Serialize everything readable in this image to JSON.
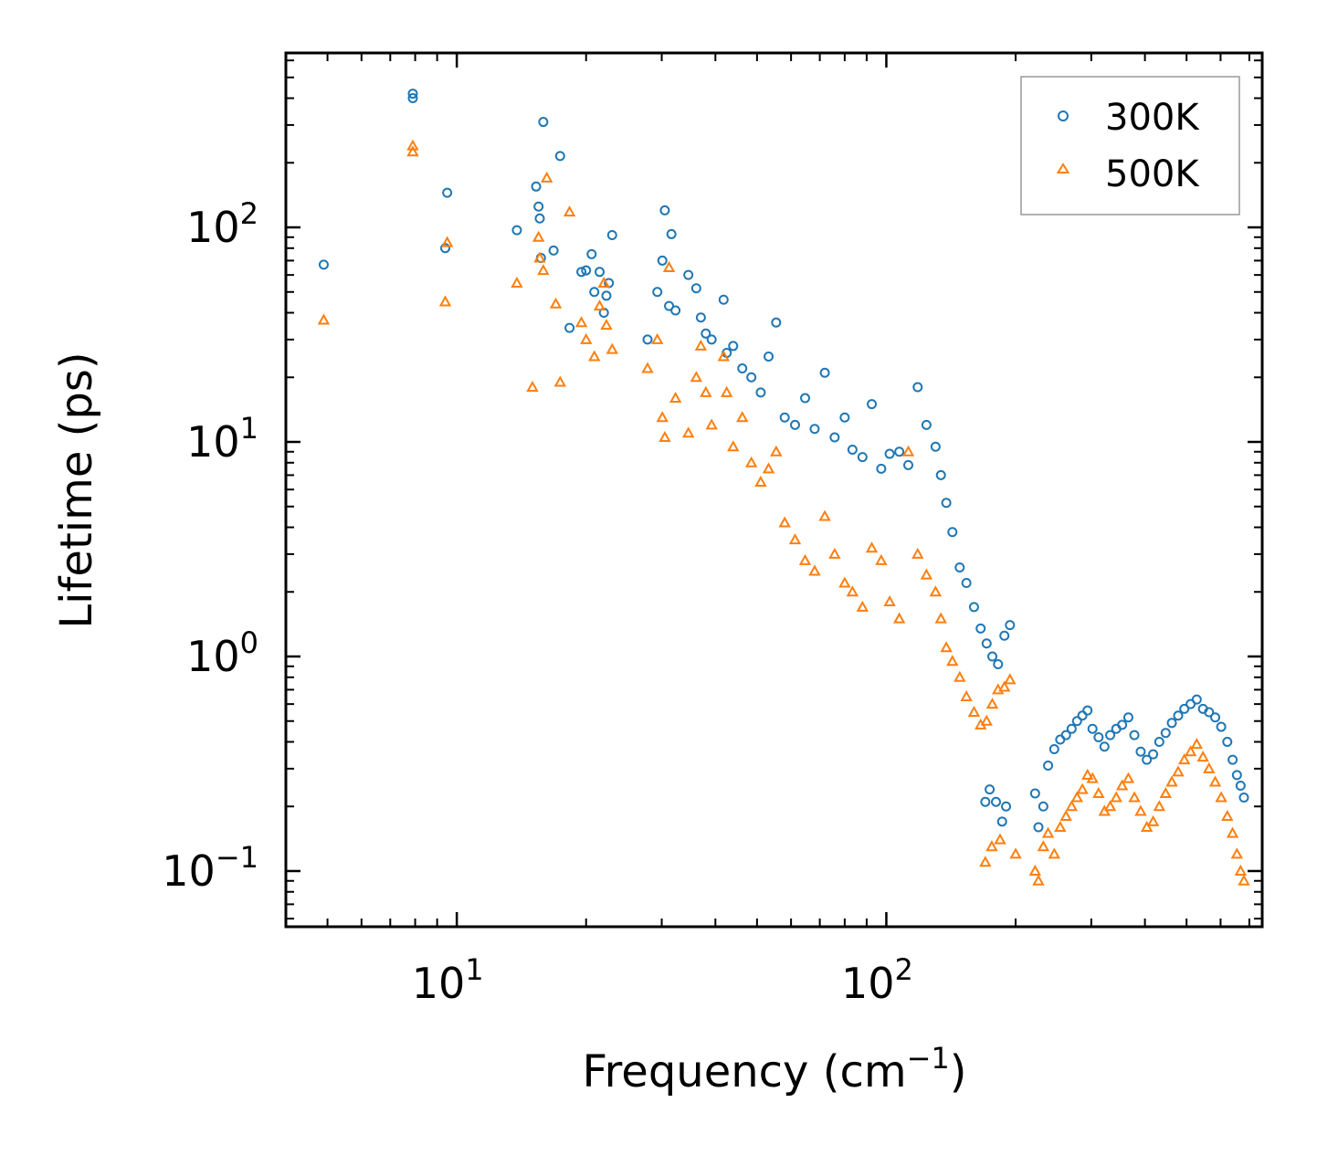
{
  "chart_data": {
    "type": "scatter",
    "xscale": "log",
    "yscale": "log",
    "xlabel": "Frequency (cm",
    "xlabel_sup": "−1",
    "xlabel_tail": ")",
    "ylabel": "Lifetime (ps)",
    "xlim": [
      4,
      750
    ],
    "ylim": [
      0.055,
      650
    ],
    "xticks": [
      {
        "base": "10",
        "exp": "1",
        "value": 10
      },
      {
        "base": "10",
        "exp": "2",
        "value": 100
      }
    ],
    "yticks": [
      {
        "base": "10",
        "exp": "−1",
        "value": 0.1
      },
      {
        "base": "10",
        "exp": "0",
        "value": 1
      },
      {
        "base": "10",
        "exp": "1",
        "value": 10
      },
      {
        "base": "10",
        "exp": "2",
        "value": 100
      }
    ],
    "legend_position": "top-right",
    "series": [
      {
        "name": "300K",
        "color": "#1f77b4",
        "marker": "circle",
        "x": [
          4.9,
          7.9,
          7.9,
          9.5,
          9.4,
          13.8,
          15.3,
          15.5,
          15.6,
          15.7,
          15.9,
          16.8,
          17.4,
          18.3,
          19.5,
          20.0,
          20.6,
          20.9,
          21.5,
          22.0,
          22.3,
          22.6,
          23.0,
          27.8,
          29.3,
          30.1,
          30.5,
          31.2,
          31.6,
          32.3,
          34.6,
          36.1,
          37.0,
          38.0,
          39.2,
          41.8,
          42.5,
          44.0,
          46.2,
          48.5,
          51.0,
          53.2,
          55.4,
          58.0,
          61.3,
          64.7,
          68.1,
          71.9,
          75.8,
          80.0,
          83.4,
          88.0,
          92.5,
          97.3,
          101.8,
          107.2,
          112.5,
          118.3,
          124.0,
          130.2,
          134.0,
          137.9,
          142.5,
          148.2,
          153.6,
          160.0,
          165.8,
          171.2,
          176.5,
          182.0,
          188.3,
          194.0,
          170.0,
          174.0,
          180.0,
          186.0,
          190.0,
          222.0,
          226.0,
          232.0,
          238.0,
          246.0,
          254.0,
          262.0,
          270.0,
          278.0,
          286.0,
          294.0,
          302.0,
          312.0,
          322.0,
          332.0,
          343.0,
          354.0,
          366.0,
          378.0,
          391.0,
          404.0,
          418.0,
          432.0,
          447.0,
          462.0,
          478.0,
          494.0,
          511.0,
          528.0,
          546.0,
          564.0,
          583.0,
          602.0,
          622.0,
          640.0,
          655.0,
          668.0,
          680.0
        ],
        "y": [
          67,
          420,
          400,
          145,
          80,
          97,
          155,
          125,
          110,
          72,
          310,
          78,
          215,
          34,
          62,
          63,
          75,
          50,
          62,
          40,
          48,
          55,
          92,
          30,
          50,
          70,
          120,
          43,
          93,
          41,
          60,
          52,
          38,
          32,
          30,
          46,
          26,
          28,
          22,
          20,
          17,
          25,
          36,
          13,
          12,
          16,
          11.5,
          21,
          10.5,
          13,
          9.2,
          8.5,
          15,
          7.5,
          8.8,
          9.0,
          7.8,
          18,
          12,
          9.5,
          7.0,
          5.2,
          3.8,
          2.6,
          2.2,
          1.7,
          1.35,
          1.15,
          1.0,
          0.92,
          1.25,
          1.4,
          0.21,
          0.24,
          0.21,
          0.17,
          0.2,
          0.23,
          0.16,
          0.2,
          0.31,
          0.37,
          0.41,
          0.43,
          0.46,
          0.5,
          0.53,
          0.56,
          0.46,
          0.42,
          0.38,
          0.43,
          0.46,
          0.48,
          0.52,
          0.43,
          0.36,
          0.33,
          0.35,
          0.4,
          0.44,
          0.49,
          0.53,
          0.57,
          0.6,
          0.63,
          0.57,
          0.55,
          0.52,
          0.47,
          0.4,
          0.33,
          0.28,
          0.25,
          0.22
        ]
      },
      {
        "name": "500K",
        "color": "#ff7f0e",
        "marker": "triangle",
        "x": [
          4.9,
          7.9,
          7.9,
          9.5,
          9.4,
          13.8,
          15.0,
          15.5,
          15.6,
          15.9,
          16.2,
          17.0,
          17.4,
          18.3,
          19.5,
          20.0,
          20.9,
          21.5,
          22.0,
          22.3,
          23.0,
          27.8,
          29.3,
          30.1,
          30.5,
          31.2,
          32.3,
          34.6,
          36.1,
          37.0,
          38.0,
          39.2,
          41.8,
          42.5,
          44.0,
          46.2,
          48.5,
          51.0,
          53.2,
          55.4,
          58.0,
          61.3,
          64.7,
          68.1,
          71.9,
          75.8,
          80.0,
          83.4,
          88.0,
          92.5,
          97.3,
          101.8,
          107.2,
          112.5,
          118.3,
          124.0,
          130.2,
          134.0,
          137.9,
          142.5,
          148.2,
          153.6,
          160.0,
          165.8,
          171.2,
          176.5,
          182.0,
          188.3,
          194.0,
          170.0,
          176.0,
          184.0,
          200.0,
          222.0,
          226.0,
          232.0,
          238.0,
          246.0,
          254.0,
          262.0,
          270.0,
          278.0,
          286.0,
          294.0,
          302.0,
          312.0,
          322.0,
          332.0,
          343.0,
          354.0,
          366.0,
          378.0,
          391.0,
          404.0,
          418.0,
          432.0,
          447.0,
          462.0,
          478.0,
          494.0,
          511.0,
          528.0,
          546.0,
          564.0,
          583.0,
          602.0,
          622.0,
          640.0,
          655.0,
          668.0,
          680.0
        ],
        "y": [
          37,
          240,
          225,
          85,
          45,
          55,
          18,
          90,
          72,
          63,
          170,
          44,
          19,
          118,
          36,
          30,
          25,
          43,
          55,
          35,
          27,
          22,
          30,
          13,
          10.5,
          65,
          16,
          11,
          20,
          28,
          17,
          12,
          25,
          17,
          9.5,
          13,
          8.0,
          6.5,
          7.5,
          9.0,
          4.2,
          3.5,
          2.8,
          2.5,
          4.5,
          3.0,
          2.2,
          2.0,
          1.7,
          3.2,
          2.8,
          1.8,
          1.5,
          9.0,
          3.0,
          2.4,
          2.0,
          1.5,
          1.1,
          0.95,
          0.8,
          0.65,
          0.55,
          0.48,
          0.5,
          0.6,
          0.7,
          0.72,
          0.78,
          0.11,
          0.13,
          0.14,
          0.12,
          0.1,
          0.09,
          0.13,
          0.15,
          0.12,
          0.16,
          0.18,
          0.2,
          0.22,
          0.24,
          0.28,
          0.27,
          0.23,
          0.19,
          0.2,
          0.22,
          0.25,
          0.27,
          0.22,
          0.19,
          0.16,
          0.17,
          0.2,
          0.23,
          0.26,
          0.29,
          0.33,
          0.36,
          0.39,
          0.34,
          0.3,
          0.26,
          0.22,
          0.18,
          0.15,
          0.12,
          0.1,
          0.09
        ]
      }
    ]
  }
}
